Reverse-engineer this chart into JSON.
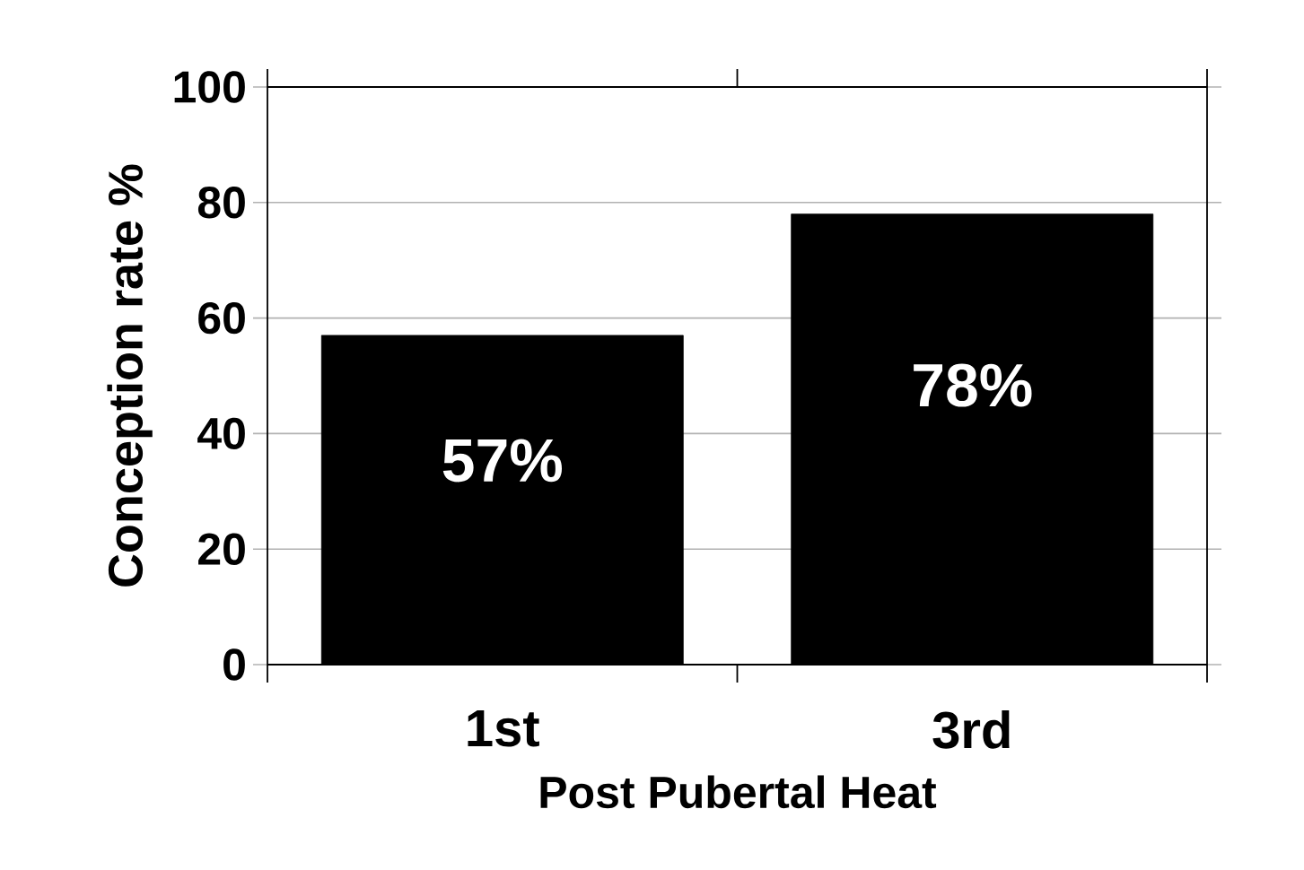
{
  "chart_data": {
    "type": "bar",
    "xlabel": "Post Pubertal Heat",
    "ylabel": "Conception rate %",
    "categories": [
      "1st",
      "3rd"
    ],
    "values": [
      57,
      78
    ],
    "value_labels": [
      "57%",
      "78%"
    ],
    "color": "#000000",
    "ylim": [
      0,
      100
    ],
    "yticks": [
      0,
      20,
      40,
      60,
      80,
      100
    ],
    "grid": "y"
  }
}
